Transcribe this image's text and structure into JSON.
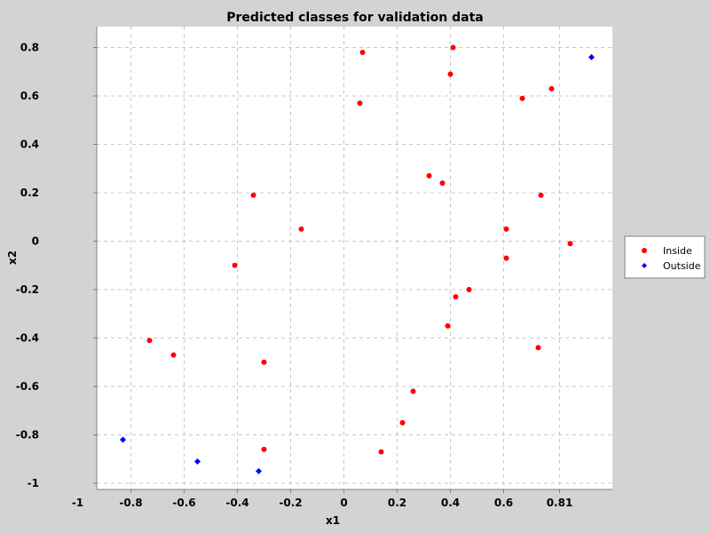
{
  "chart_data": {
    "type": "scatter",
    "title": "Predicted classes for validation data",
    "xlabel": "x1",
    "ylabel": "x2",
    "xlim": [
      -1.0,
      1.0
    ],
    "ylim": [
      -1.0,
      0.85
    ],
    "x_ticks": [
      "-1",
      "-0.8",
      "-0.6",
      "-0.4",
      "-0.2",
      "0",
      "0.2",
      "0.4",
      "0.6",
      "0.81"
    ],
    "y_ticks": [
      "-1",
      "-0.8",
      "-0.6",
      "-0.4",
      "-0.2",
      "0",
      "0.2",
      "0.4",
      "0.6",
      "0.8"
    ],
    "grid": true,
    "legend_position": "right",
    "series": [
      {
        "name": "Inside",
        "color": "#ff0000",
        "marker": "circle",
        "points": [
          {
            "x": 0.07,
            "y": 0.78
          },
          {
            "x": 0.41,
            "y": 0.8
          },
          {
            "x": 0.4,
            "y": 0.69
          },
          {
            "x": 0.06,
            "y": 0.57
          },
          {
            "x": 0.67,
            "y": 0.59
          },
          {
            "x": 0.78,
            "y": 0.63
          },
          {
            "x": 0.32,
            "y": 0.27
          },
          {
            "x": 0.37,
            "y": 0.24
          },
          {
            "x": 0.74,
            "y": 0.19
          },
          {
            "x": -0.34,
            "y": 0.19
          },
          {
            "x": -0.16,
            "y": 0.05
          },
          {
            "x": 0.61,
            "y": 0.05
          },
          {
            "x": 0.85,
            "y": -0.01
          },
          {
            "x": -0.41,
            "y": -0.1
          },
          {
            "x": 0.61,
            "y": -0.07
          },
          {
            "x": 0.47,
            "y": -0.2
          },
          {
            "x": 0.42,
            "y": -0.23
          },
          {
            "x": 0.39,
            "y": -0.35
          },
          {
            "x": -0.73,
            "y": -0.41
          },
          {
            "x": 0.73,
            "y": -0.44
          },
          {
            "x": -0.64,
            "y": -0.47
          },
          {
            "x": -0.3,
            "y": -0.5
          },
          {
            "x": 0.26,
            "y": -0.62
          },
          {
            "x": 0.22,
            "y": -0.75
          },
          {
            "x": 0.14,
            "y": -0.87
          },
          {
            "x": -0.3,
            "y": -0.86
          }
        ]
      },
      {
        "name": "Outside",
        "color": "#0000ff",
        "marker": "diamond",
        "points": [
          {
            "x": 0.93,
            "y": 0.76
          },
          {
            "x": -0.83,
            "y": -0.82
          },
          {
            "x": -0.55,
            "y": -0.91
          },
          {
            "x": -0.32,
            "y": -0.95
          }
        ]
      }
    ]
  }
}
